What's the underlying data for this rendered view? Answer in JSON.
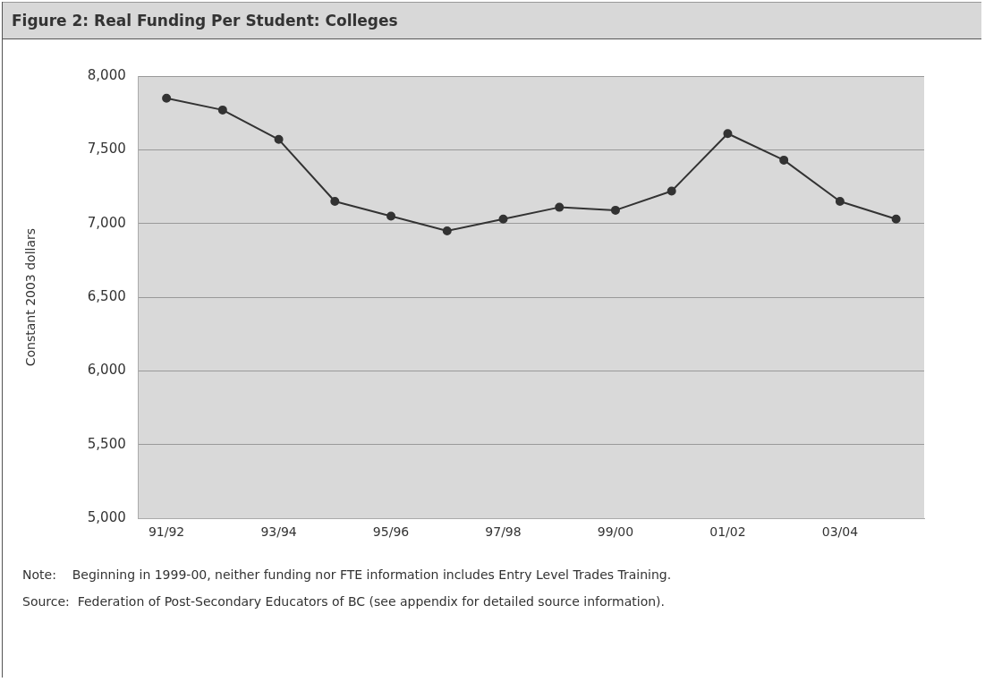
{
  "chart_data": {
    "type": "line",
    "title": "Figure 2: Real Funding Per Student: Colleges",
    "ylabel": "Constant 2003 dollars",
    "categories": [
      "91/92",
      null,
      "93/94",
      null,
      "95/96",
      null,
      "97/98",
      null,
      "99/00",
      null,
      "01/02",
      null,
      "03/04",
      null
    ],
    "series": [
      {
        "color": "#333333",
        "values": [
          7850,
          7770,
          7570,
          7150,
          7050,
          6950,
          7030,
          7110,
          7090,
          7220,
          7610,
          7430,
          7150,
          7030
        ]
      }
    ],
    "ylim": [
      5000,
      8000
    ],
    "yticks": [
      {
        "value": 5000,
        "label": "5,000"
      },
      {
        "value": 5500,
        "label": "5,500"
      },
      {
        "value": 6000,
        "label": "6,000"
      },
      {
        "value": 6500,
        "label": "6,500"
      },
      {
        "value": 7000,
        "label": "7,000"
      },
      {
        "value": 7500,
        "label": "7,500"
      },
      {
        "value": 8000,
        "label": "8,000"
      }
    ],
    "grid": "y",
    "marker": "circle",
    "line_style": "solid",
    "legend": false,
    "annotations": [
      "Note:    Beginning in 1999-00, neither funding nor FTE information includes Entry Level Trades Training.",
      "Source:  Federation of Post-Secondary Educators of BC (see appendix for detailed source information)."
    ]
  }
}
